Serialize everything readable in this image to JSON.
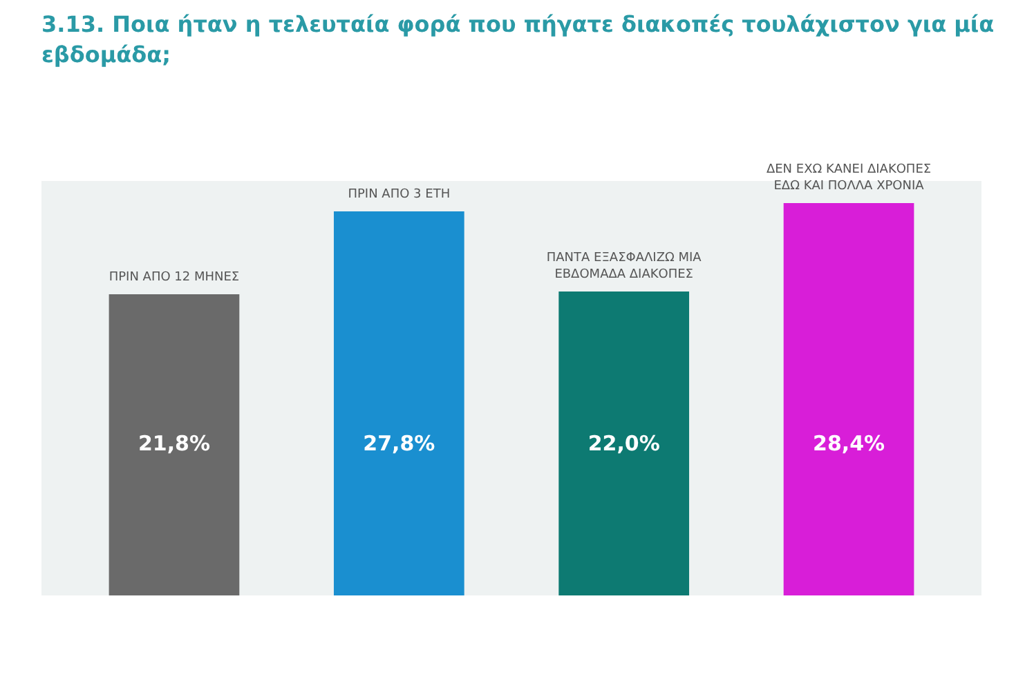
{
  "chart_data": {
    "type": "bar",
    "title": "3.13. Ποια ήταν η τελευταία φορά που πήγατε διακοπές τουλάχιστον για μία εβδομάδα;",
    "categories": [
      "ΠΡΙΝ ΑΠΟ 12 ΜΗΝΕΣ",
      "ΠΡΙΝ ΑΠΟ 3 ΕΤΗ",
      "ΠΑΝΤΑ ΕΞΑΣΦΑΛΙΖΩ ΜΙΑ ΕΒΔΟΜΑΔΑ ΔΙΑΚΟΠΕΣ",
      "ΔΕΝ ΕΧΩ ΚΑΝΕΙ ΔΙΑΚΟΠΕΣ ΕΔΩ ΚΑΙ ΠΟΛΛΑ ΧΡΟΝΙΑ"
    ],
    "values": [
      21.8,
      27.8,
      22.0,
      28.4
    ],
    "colors": [
      "#6a6a6a",
      "#1a8fd0",
      "#0d7a72",
      "#d81ed8"
    ],
    "value_labels": [
      "21,8%",
      "27,8%",
      "22,0%",
      "28,4%"
    ]
  }
}
